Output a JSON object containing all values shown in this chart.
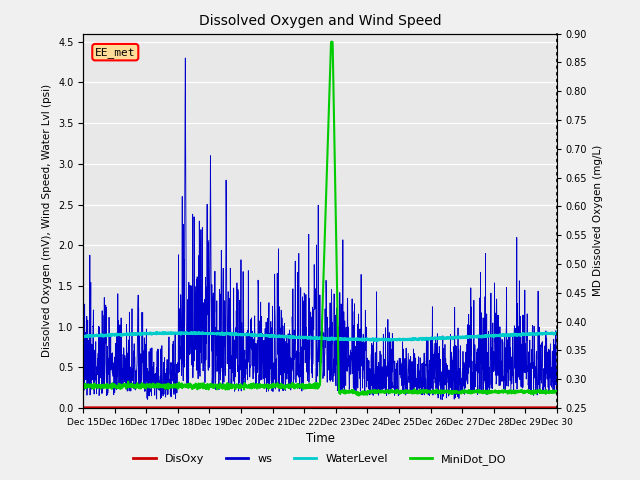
{
  "title": "Dissolved Oxygen and Wind Speed",
  "xlabel": "Time",
  "ylabel_left": "Dissolved Oxygen (mV), Wind Speed, Water Lvl (psi)",
  "ylabel_right": "MD Dissolved Oxygen (mg/L)",
  "ylim_left": [
    0.0,
    4.6
  ],
  "ylim_right": [
    0.25,
    0.9
  ],
  "yticks_left": [
    0.0,
    0.5,
    1.0,
    1.5,
    2.0,
    2.5,
    3.0,
    3.5,
    4.0,
    4.5
  ],
  "yticks_right": [
    0.25,
    0.3,
    0.35,
    0.4,
    0.45,
    0.5,
    0.55,
    0.6,
    0.65,
    0.7,
    0.75,
    0.8,
    0.85,
    0.9
  ],
  "xticklabels": [
    "Dec 15",
    "Dec 16",
    "Dec 17",
    "Dec 18",
    "Dec 19",
    "Dec 20",
    "Dec 21",
    "Dec 22",
    "Dec 23",
    "Dec 24",
    "Dec 25",
    "Dec 26",
    "Dec 27",
    "Dec 28",
    "Dec 29",
    "Dec 30"
  ],
  "background_color": "#f0f0f0",
  "plot_bg_color": "#e8e8e8",
  "grid_color": "white",
  "station_label": "EE_met",
  "station_box_color": "#ffdd99",
  "station_border_color": "red",
  "colors": {
    "DisOxy": "#cc0000",
    "ws": "#0000cc",
    "WaterLevel": "#00cccc",
    "MiniDot_DO": "#00cc00"
  },
  "linewidths": {
    "DisOxy": 1.2,
    "ws": 0.6,
    "WaterLevel": 1.8,
    "MiniDot_DO": 1.5
  }
}
